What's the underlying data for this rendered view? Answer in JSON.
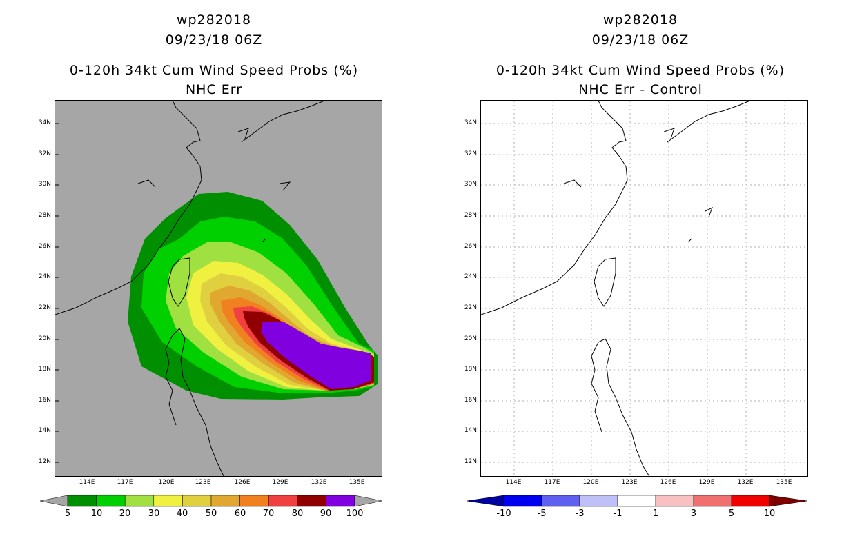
{
  "left_panel": {
    "title_line1": "wp282018",
    "title_line2": "09/23/18 06Z",
    "title_line3": "0-120h 34kt Cum Wind Speed Probs (%)",
    "title_line4": "NHC Err",
    "background_color": "#a6a6a6",
    "colorbar": {
      "labels": [
        "5",
        "10",
        "20",
        "30",
        "40",
        "50",
        "60",
        "70",
        "80",
        "90",
        "100"
      ],
      "colors": [
        "#008f00",
        "#00d000",
        "#a0e040",
        "#f0f040",
        "#e0d040",
        "#e0a830",
        "#f08020",
        "#f04040",
        "#900000",
        "#8000e0"
      ],
      "end_color": "#a6a6a6"
    }
  },
  "right_panel": {
    "title_line1": "wp282018",
    "title_line2": "09/23/18 06Z",
    "title_line3": "0-120h 34kt Cum Wind Speed Probs (%)",
    "title_line4": "NHC Err - Control",
    "colorbar": {
      "labels": [
        "-10",
        "-5",
        "-3",
        "-1",
        "1",
        "3",
        "5",
        "10"
      ],
      "colors": [
        "#0000f0",
        "#6060f0",
        "#c0c0f8",
        "#ffffff",
        "#f8c0c0",
        "#f07070",
        "#f00000"
      ],
      "left_end_color": "#0000a0",
      "right_end_color": "#800000"
    }
  },
  "axes": {
    "lat_labels": [
      "34N",
      "32N",
      "30N",
      "28N",
      "26N",
      "24N",
      "22N",
      "20N",
      "18N",
      "16N",
      "14N",
      "12N"
    ],
    "lon_labels": [
      "114E",
      "117E",
      "120E",
      "123E",
      "126E",
      "129E",
      "132E",
      "135E"
    ]
  }
}
